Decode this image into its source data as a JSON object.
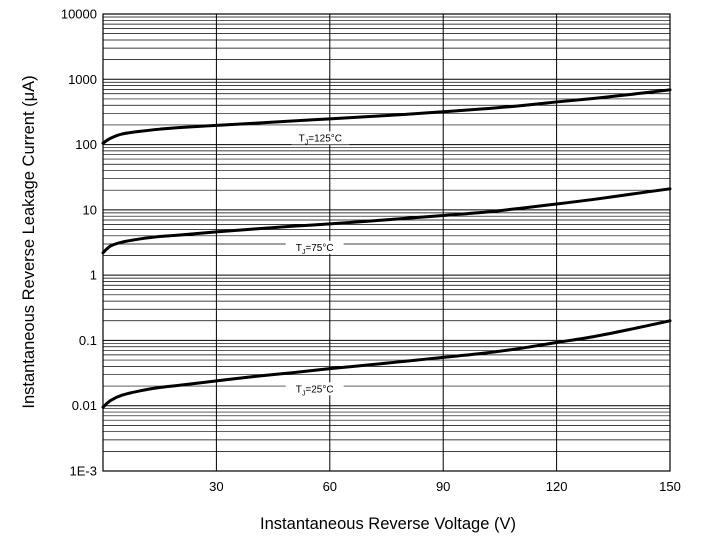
{
  "chart_data": {
    "type": "line",
    "title": "",
    "xlabel": "Instantaneous Reverse Voltage (V)",
    "ylabel": "Instantaneous Reverse Leakage Current (μA)",
    "xlim": [
      0,
      150
    ],
    "ylim": [
      0.001,
      10000
    ],
    "yscale": "log",
    "grid": true,
    "x_ticks": [
      30,
      60,
      90,
      120,
      150
    ],
    "y_ticks": [
      {
        "value": 0.001,
        "label": "1E-3"
      },
      {
        "value": 0.01,
        "label": "0.01"
      },
      {
        "value": 0.1,
        "label": "0.1"
      },
      {
        "value": 1,
        "label": "1"
      },
      {
        "value": 10,
        "label": "10"
      },
      {
        "value": 100,
        "label": "100"
      },
      {
        "value": 1000,
        "label": "1000"
      },
      {
        "value": 10000,
        "label": "10000"
      }
    ],
    "series": [
      {
        "name": "TJ=125°C",
        "label_sub": "J",
        "label_prefix": "T",
        "label_suffix": "=125°C",
        "label_x": 57.5,
        "x": [
          0,
          2,
          5,
          10,
          15,
          20,
          30,
          40,
          50,
          60,
          70,
          80,
          90,
          100,
          110,
          120,
          130,
          140,
          150
        ],
        "y": [
          105,
          125,
          145,
          160,
          172,
          182,
          197,
          212,
          230,
          248,
          268,
          290,
          318,
          350,
          392,
          450,
          510,
          590,
          690
        ]
      },
      {
        "name": "TJ=75°C",
        "label_sub": "J",
        "label_prefix": "T",
        "label_suffix": "=75°C",
        "label_x": 56,
        "x": [
          0,
          2,
          5,
          10,
          15,
          20,
          30,
          40,
          50,
          60,
          70,
          80,
          90,
          100,
          110,
          120,
          130,
          140,
          150
        ],
        "y": [
          2.2,
          2.8,
          3.2,
          3.6,
          3.9,
          4.1,
          4.6,
          5.1,
          5.6,
          6.1,
          6.7,
          7.4,
          8.2,
          9.1,
          10.5,
          12.3,
          14.5,
          17.5,
          21
        ]
      },
      {
        "name": "TJ=25°C",
        "label_sub": "J",
        "label_prefix": "T",
        "label_suffix": "=25°C",
        "label_x": 56,
        "x": [
          0,
          2,
          5,
          10,
          15,
          20,
          30,
          40,
          50,
          60,
          70,
          80,
          90,
          100,
          110,
          120,
          130,
          140,
          150
        ],
        "y": [
          0.0095,
          0.012,
          0.0145,
          0.017,
          0.019,
          0.0205,
          0.024,
          0.028,
          0.032,
          0.037,
          0.042,
          0.048,
          0.055,
          0.063,
          0.075,
          0.093,
          0.115,
          0.15,
          0.2
        ]
      }
    ]
  }
}
